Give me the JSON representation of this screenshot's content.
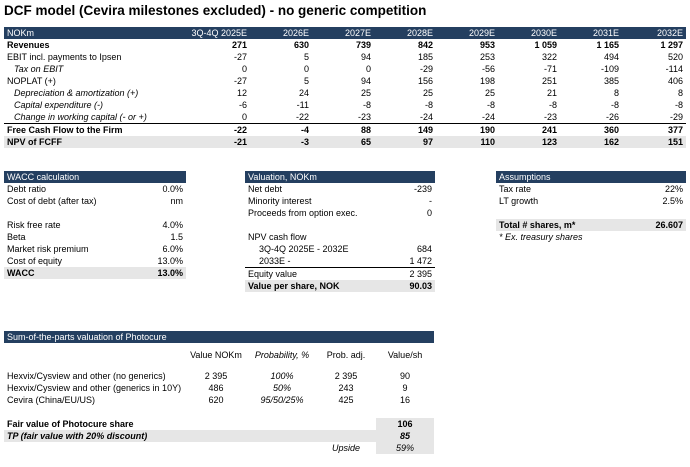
{
  "title": "DCF model (Cevira milestones excluded) - no generic competition",
  "dcf": {
    "header": [
      "NOKm",
      "3Q-4Q 2025E",
      "2026E",
      "2027E",
      "2028E",
      "2029E",
      "2030E",
      "2031E",
      "2032E"
    ],
    "rows": [
      {
        "label": "Revenues",
        "values": [
          "271",
          "630",
          "739",
          "842",
          "953",
          "1 059",
          "1 165",
          "1 297"
        ]
      },
      {
        "label": "EBIT incl. payments to Ipsen",
        "values": [
          "-27",
          "5",
          "94",
          "185",
          "253",
          "322",
          "494",
          "520"
        ]
      },
      {
        "label": "Tax on EBIT",
        "values": [
          "0",
          "0",
          "0",
          "-29",
          "-56",
          "-71",
          "-109",
          "-114"
        ]
      },
      {
        "label": "NOPLAT (+)",
        "values": [
          "-27",
          "5",
          "94",
          "156",
          "198",
          "251",
          "385",
          "406"
        ]
      },
      {
        "label": "Depreciation & amortization (+)",
        "values": [
          "12",
          "24",
          "25",
          "25",
          "25",
          "21",
          "8",
          "8"
        ]
      },
      {
        "label": "Capital expenditure (-)",
        "values": [
          "-6",
          "-11",
          "-8",
          "-8",
          "-8",
          "-8",
          "-8",
          "-8"
        ]
      },
      {
        "label": "Change in working capital (- or +)",
        "values": [
          "0",
          "-22",
          "-23",
          "-24",
          "-24",
          "-23",
          "-26",
          "-29"
        ]
      },
      {
        "label": "Free Cash Flow to the Firm",
        "values": [
          "-22",
          "-4",
          "88",
          "149",
          "190",
          "241",
          "360",
          "377"
        ]
      },
      {
        "label": "NPV of FCFF",
        "values": [
          "-21",
          "-3",
          "65",
          "97",
          "110",
          "123",
          "162",
          "151"
        ]
      }
    ]
  },
  "wacc": {
    "header": "WACC calculation",
    "rows": [
      {
        "label": "Debt ratio",
        "value": "0.0%"
      },
      {
        "label": "Cost of debt (after tax)",
        "value": "nm"
      },
      {
        "label": "",
        "value": ""
      },
      {
        "label": "Risk free rate",
        "value": "4.0%"
      },
      {
        "label": "Beta",
        "value": "1.5"
      },
      {
        "label": "Market risk premium",
        "value": "6.0%"
      },
      {
        "label": "Cost of equity",
        "value": "13.0%"
      },
      {
        "label": "WACC",
        "value": "13.0%"
      }
    ]
  },
  "valuation": {
    "header": "Valuation, NOKm",
    "rows": [
      {
        "label": "Net debt",
        "value": "-239"
      },
      {
        "label": "Minority interest",
        "value": "-"
      },
      {
        "label": "Proceeds from option exec.",
        "value": "0"
      },
      {
        "label": "",
        "value": ""
      },
      {
        "label": "NPV cash flow",
        "value": ""
      },
      {
        "label": "3Q-4Q 2025E - 2032E",
        "value": "684"
      },
      {
        "label": "2033E -",
        "value": "1 472"
      },
      {
        "label": "Equity value",
        "value": "2 395"
      },
      {
        "label": "Value per share, NOK",
        "value": "90.03"
      }
    ]
  },
  "assumptions": {
    "header": "Assumptions",
    "rows": [
      {
        "label": "Tax rate",
        "value": "22%"
      },
      {
        "label": "LT growth",
        "value": "2.5%"
      },
      {
        "label": "",
        "value": ""
      },
      {
        "label": "Total # shares, m*",
        "value": "26.607"
      }
    ],
    "footnote": "* Ex. treasury shares"
  },
  "sotp": {
    "header": "Sum-of-the-parts valuation of Photocure",
    "columns": [
      "",
      "Value NOKm",
      "Probability, %",
      "Prob. adj.",
      "Value/sh"
    ],
    "rows": [
      {
        "label": "Hexvix/Cysview and other (no generics)",
        "value": "2 395",
        "prob": "100%",
        "adj": "2 395",
        "vsh": "90"
      },
      {
        "label": "Hexvix/Cysview and other (generics in 10Y)",
        "value": "486",
        "prob": "50%",
        "adj": "243",
        "vsh": "9"
      },
      {
        "label": "Cevira (China/EU/US)",
        "value": "620",
        "prob": "95/50/25%",
        "adj": "425",
        "vsh": "16"
      }
    ],
    "fair_value_label": "Fair value of Photocure share",
    "fair_value": "106",
    "tp_label": "TP (fair value with 20% discount)",
    "tp_value": "85",
    "upside_label": "Upside",
    "upside_value": "59%"
  }
}
